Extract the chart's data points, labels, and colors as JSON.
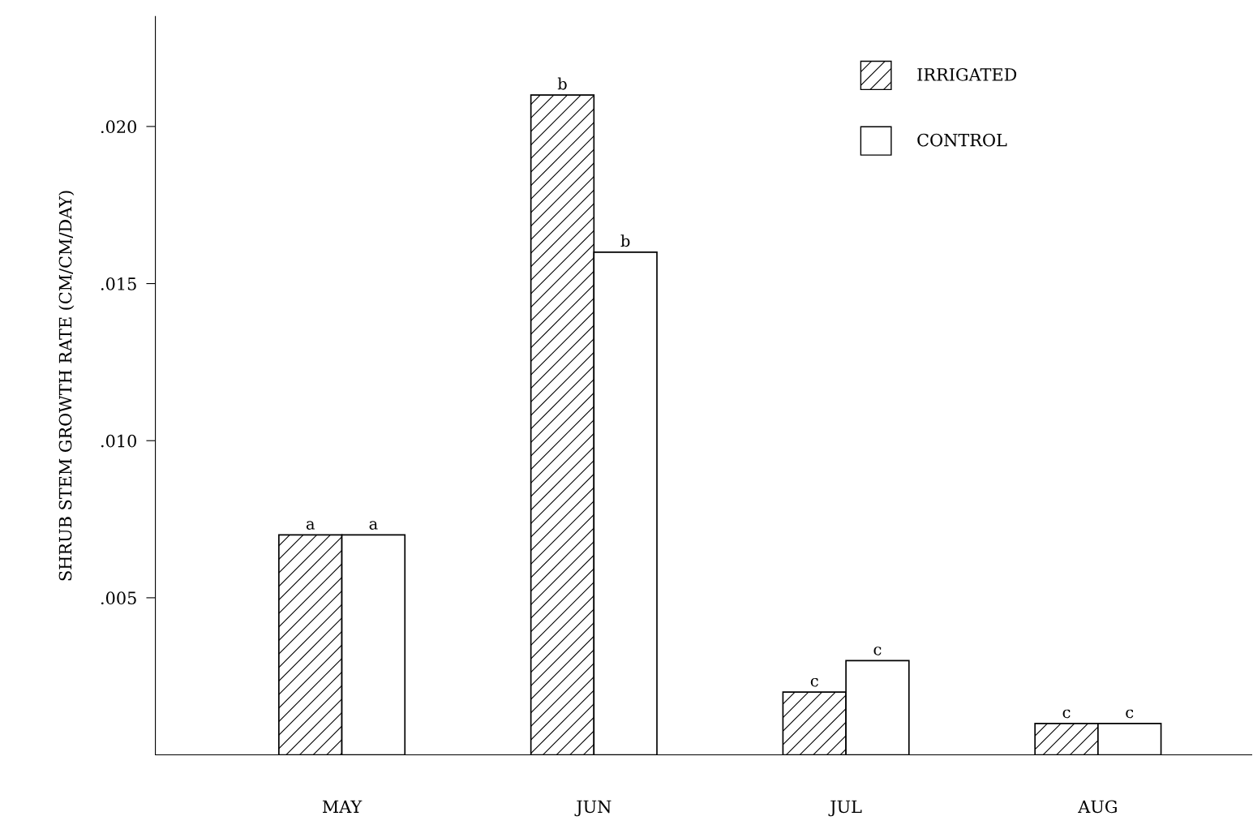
{
  "chart_data": {
    "type": "bar",
    "ylabel": "SHRUB STEM GROWTH RATE (CM/CM/DAY)",
    "categories": [
      "MAY",
      "JUN",
      "JUL",
      "AUG"
    ],
    "series": [
      {
        "name": "IRRIGATED",
        "color": "#000000",
        "values": [
          0.007,
          0.021,
          0.002,
          0.001
        ],
        "value_labels": [
          "a",
          "b",
          "c",
          "c"
        ]
      },
      {
        "name": "CONTROL",
        "color": "#ffffff",
        "values": [
          0.007,
          0.016,
          0.003,
          0.001
        ],
        "value_labels": [
          "a",
          "b",
          "c",
          "c"
        ]
      }
    ],
    "ylim": [
      0,
      0.0235
    ],
    "yticks": [
      {
        "value": 0.005,
        "label": ".005"
      },
      {
        "value": 0.01,
        "label": ".010"
      },
      {
        "value": 0.015,
        "label": ".015"
      },
      {
        "value": 0.02,
        "label": ".020"
      }
    ],
    "grid": false,
    "legend": "top right"
  }
}
